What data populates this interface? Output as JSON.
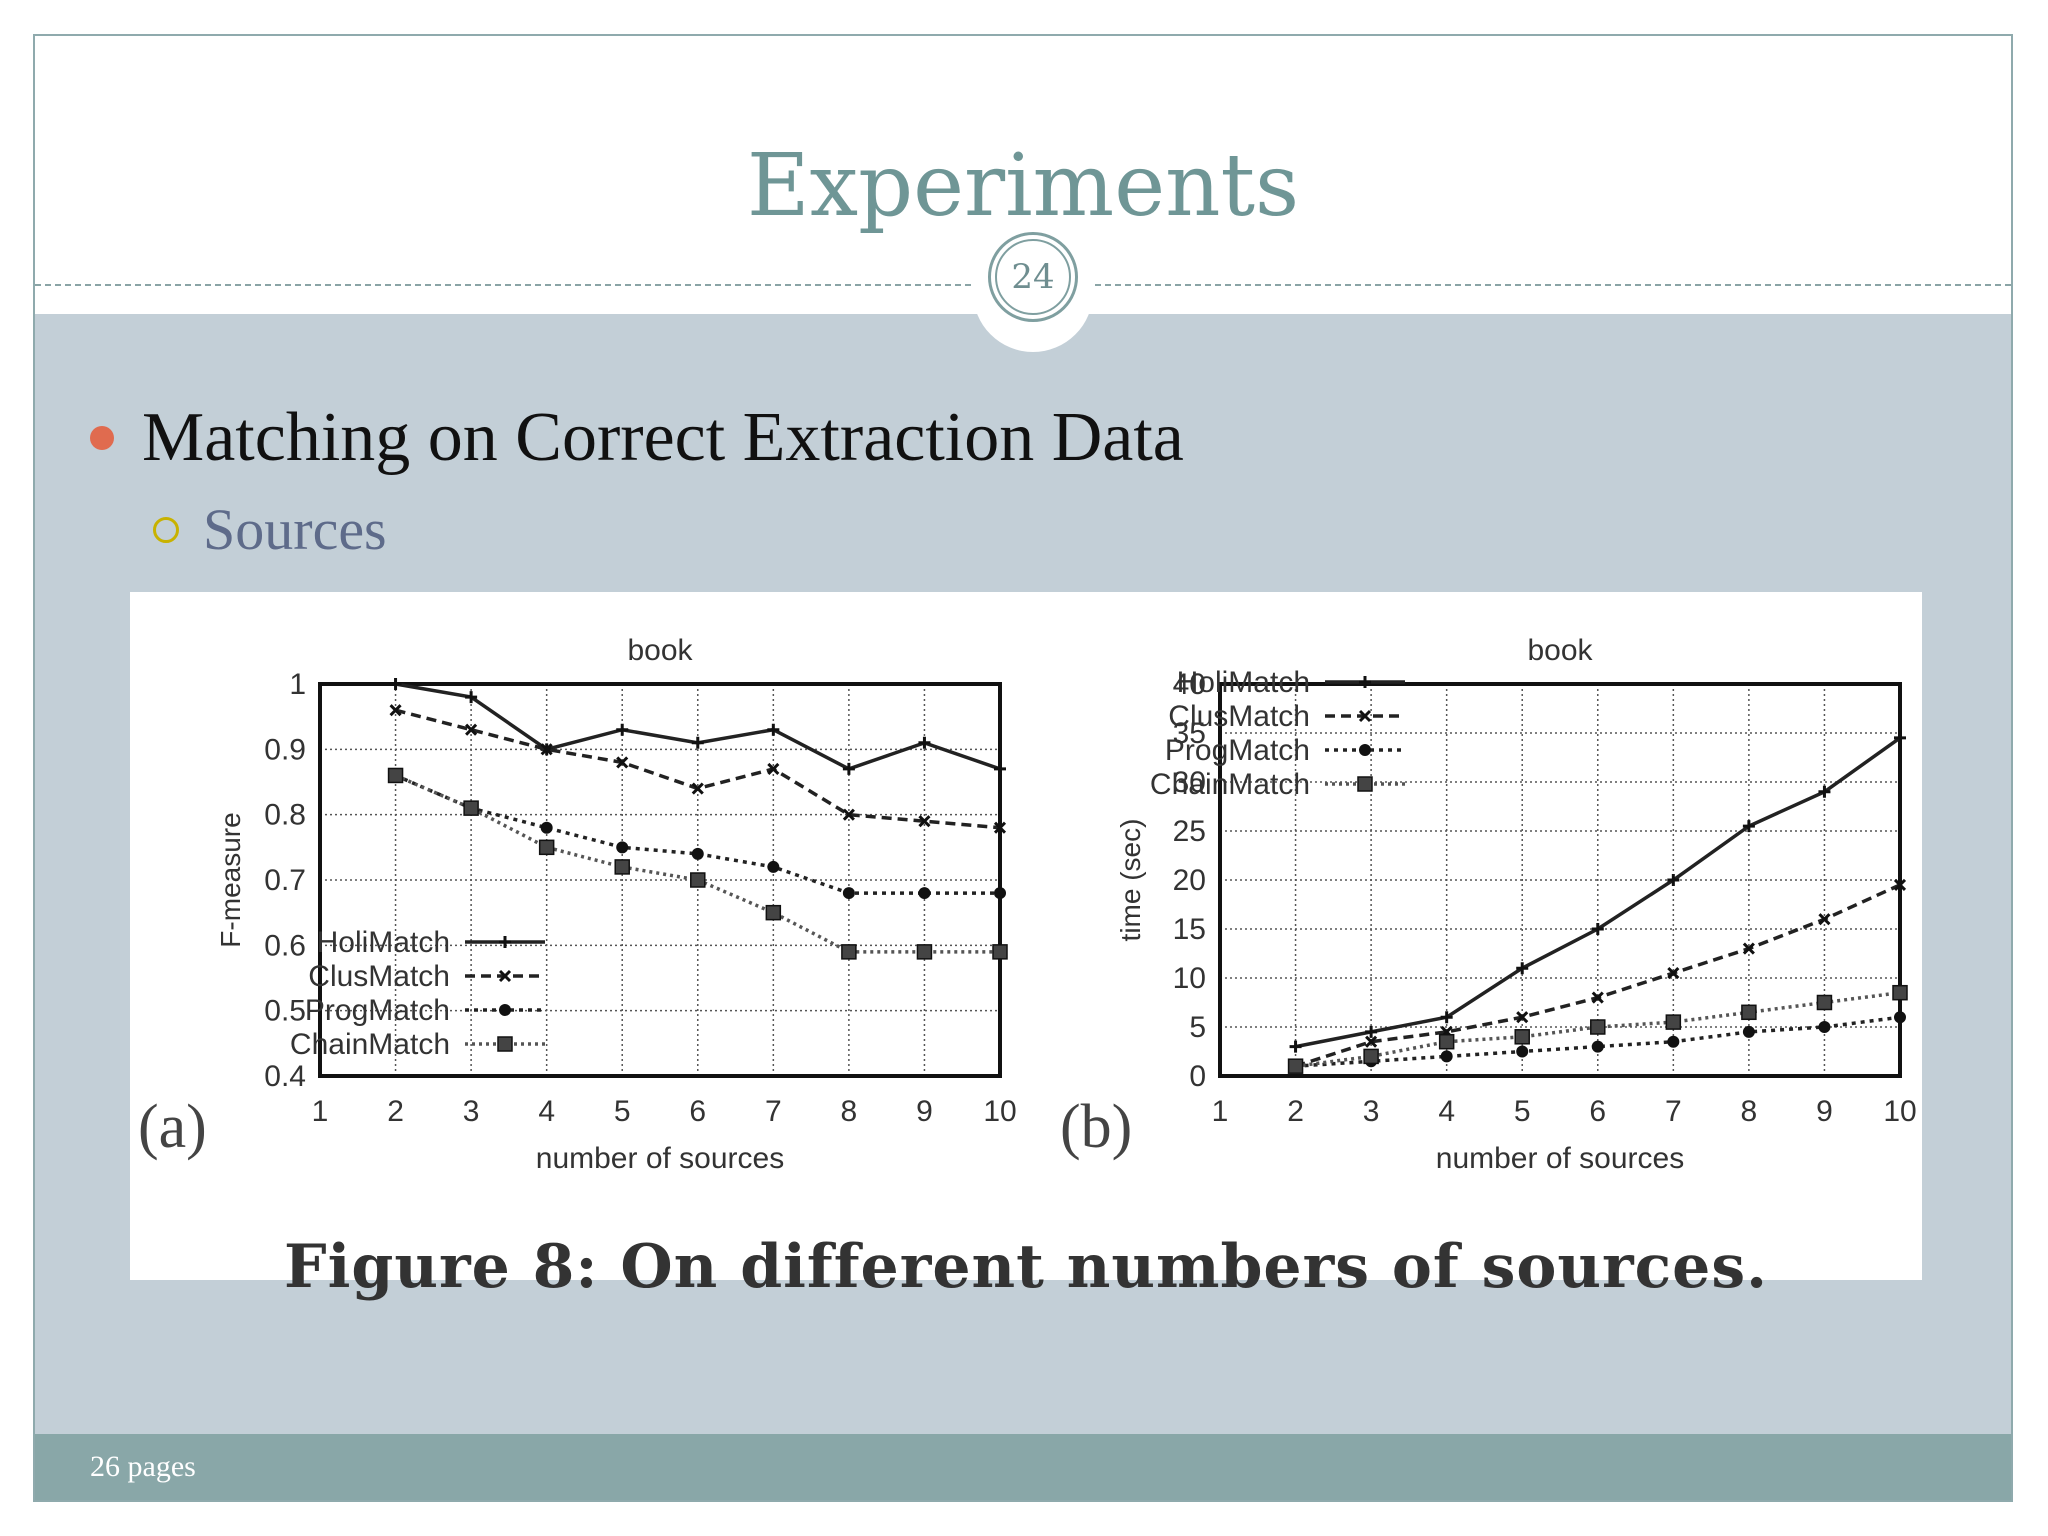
{
  "slide": {
    "title": "Experiments",
    "page_number": "24",
    "bullet": "Matching on Correct Extraction Data",
    "sub_bullet": "Sources",
    "footer": "26 pages"
  },
  "figure": {
    "caption": "Figure 8:  On different numbers of sources.",
    "label_a": "(a)",
    "label_b": "(b)"
  },
  "chart_data": [
    {
      "type": "line",
      "title": "book",
      "xlabel": "number of sources",
      "ylabel": "F-measure",
      "x": [
        2,
        3,
        4,
        5,
        6,
        7,
        8,
        9,
        10
      ],
      "xticks": [
        "1",
        "2",
        "3",
        "4",
        "5",
        "6",
        "7",
        "8",
        "9",
        "10"
      ],
      "xlim": [
        1,
        10
      ],
      "yticks": [
        "0.4",
        "0.5",
        "0.6",
        "0.7",
        "0.8",
        "0.9",
        "1"
      ],
      "ylim": [
        0.4,
        1.0
      ],
      "grid": true,
      "legend": "bottom-left",
      "series": [
        {
          "name": "HoliMatch",
          "style": "solid",
          "marker": "plus",
          "values": [
            1.0,
            0.98,
            0.9,
            0.93,
            0.91,
            0.93,
            0.87,
            0.91,
            0.87
          ]
        },
        {
          "name": "ClusMatch",
          "style": "dashed",
          "marker": "x",
          "values": [
            0.96,
            0.93,
            0.9,
            0.88,
            0.84,
            0.87,
            0.8,
            0.79,
            0.78
          ]
        },
        {
          "name": "ProgMatch",
          "style": "dotted",
          "marker": "dot",
          "values": [
            0.86,
            0.81,
            0.78,
            0.75,
            0.74,
            0.72,
            0.68,
            0.68,
            0.68
          ]
        },
        {
          "name": "ChainMatch",
          "style": "dotted-light",
          "marker": "square",
          "values": [
            0.86,
            0.81,
            0.75,
            0.72,
            0.7,
            0.65,
            0.59,
            0.59,
            0.59
          ]
        }
      ]
    },
    {
      "type": "line",
      "title": "book",
      "xlabel": "number of sources",
      "ylabel": "time (sec)",
      "x": [
        2,
        3,
        4,
        5,
        6,
        7,
        8,
        9,
        10
      ],
      "xticks": [
        "1",
        "2",
        "3",
        "4",
        "5",
        "6",
        "7",
        "8",
        "9",
        "10"
      ],
      "xlim": [
        1,
        10
      ],
      "yticks": [
        "0",
        "5",
        "10",
        "15",
        "20",
        "25",
        "30",
        "35",
        "40"
      ],
      "ylim": [
        0,
        40
      ],
      "grid": true,
      "legend": "top-left",
      "series": [
        {
          "name": "HoliMatch",
          "style": "solid",
          "marker": "plus",
          "values": [
            3.0,
            4.5,
            6.0,
            11.0,
            15.0,
            20.0,
            25.5,
            29.0,
            34.5
          ]
        },
        {
          "name": "ClusMatch",
          "style": "dashed",
          "marker": "x",
          "values": [
            1.0,
            3.5,
            4.5,
            6.0,
            8.0,
            10.5,
            13.0,
            16.0,
            19.5
          ]
        },
        {
          "name": "ProgMatch",
          "style": "dotted",
          "marker": "dot",
          "values": [
            1.0,
            1.5,
            2.0,
            2.5,
            3.0,
            3.5,
            4.5,
            5.0,
            6.0
          ]
        },
        {
          "name": "ChainMatch",
          "style": "dotted-light",
          "marker": "square",
          "values": [
            1.0,
            2.0,
            3.5,
            4.0,
            5.0,
            5.5,
            6.5,
            7.5,
            8.5
          ]
        }
      ]
    }
  ],
  "colors": {
    "title": "#6f9696",
    "body_bg": "#c3cfd7",
    "footer_bg": "#89a7a8",
    "bullet_dot": "#e06b4f",
    "sub_bullet_ring": "#c8b200"
  }
}
